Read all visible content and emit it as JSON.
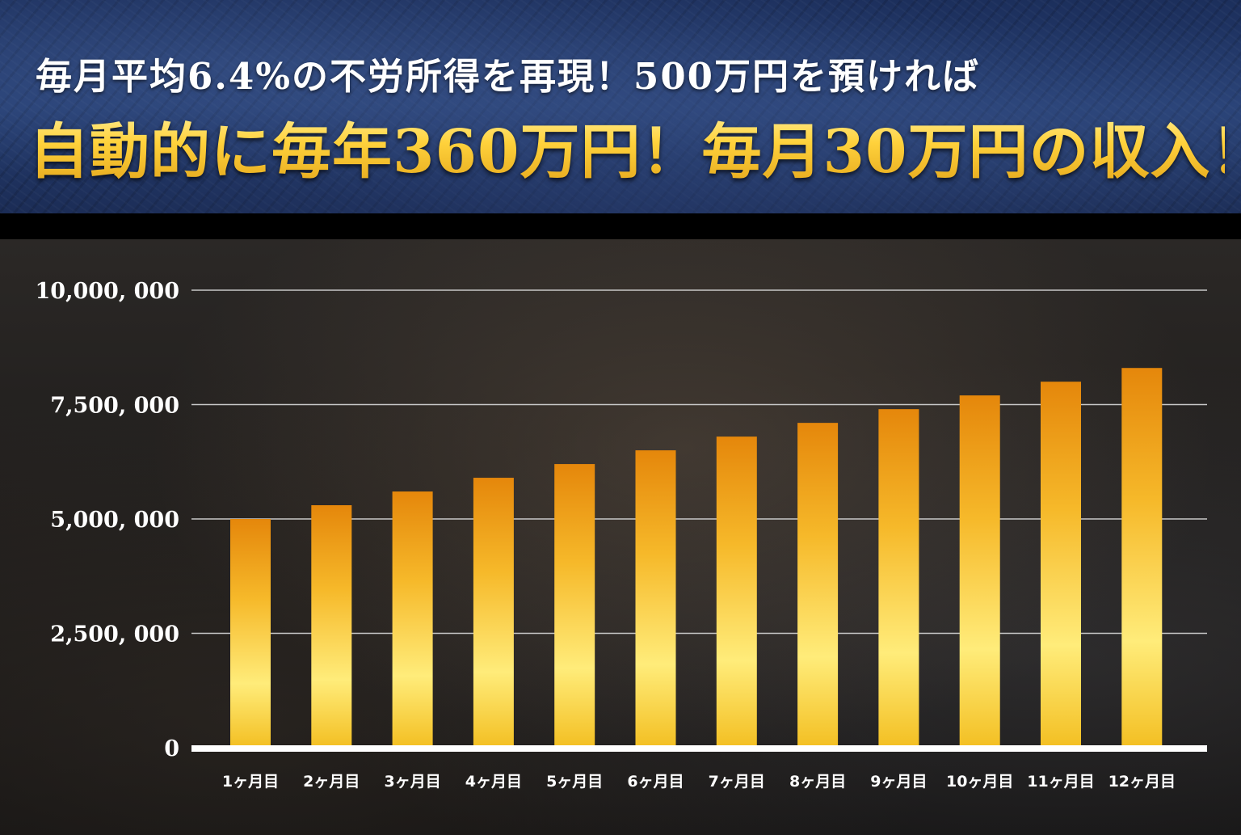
{
  "header": {
    "subtitle": "毎月平均6.4%の不労所得を再現！500万円を預ければ",
    "headline": "自動的に毎年360万円！毎月30万円の収入！"
  },
  "colors": {
    "header_bg": "#1f3466",
    "bar_top": "#e88a0c",
    "bar_mid": "#ffe36a",
    "bar_bottom": "#f4c020",
    "headline": "#ffd84a",
    "gridline": "#c8c8c8",
    "axis": "#ffffff"
  },
  "chart_data": {
    "type": "bar",
    "categories": [
      "1ヶ月目",
      "2ヶ月目",
      "3ヶ月目",
      "4ヶ月目",
      "5ヶ月目",
      "6ヶ月目",
      "7ヶ月目",
      "8ヶ月目",
      "9ヶ月目",
      "10ヶ月目",
      "11ヶ月目",
      "12ヶ月目"
    ],
    "values": [
      5000000,
      5300000,
      5600000,
      5900000,
      6200000,
      6500000,
      6800000,
      7100000,
      7400000,
      7700000,
      8000000,
      8300000
    ],
    "ylim": [
      0,
      10000000
    ],
    "yticks": [
      0,
      2500000,
      5000000,
      7500000,
      10000000
    ],
    "ytick_labels": [
      "0",
      "2,500, 000",
      "5,000, 000",
      "7,500, 000",
      "10,000, 000"
    ],
    "grid": true,
    "title": "",
    "xlabel": "",
    "ylabel": ""
  }
}
